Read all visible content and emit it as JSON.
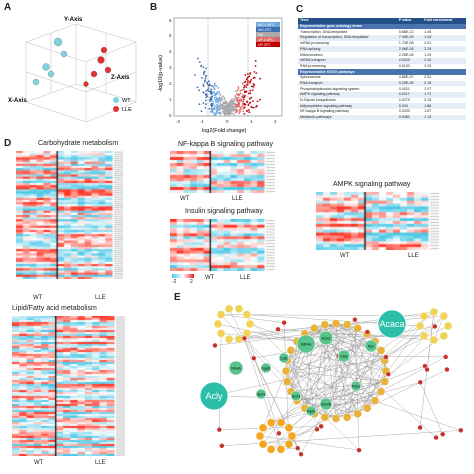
{
  "panels": {
    "a": "A",
    "b": "B",
    "c": "C",
    "d": "D",
    "e": "E"
  },
  "pca": {
    "x_axis": "X-Axis",
    "y_axis": "Y-Axis",
    "z_axis": "Z-Axis",
    "legend": [
      "WT",
      "LLE"
    ],
    "colors": {
      "WT": "#7ed3df",
      "LLE": "#e03030"
    }
  },
  "volcano": {
    "xlabel": "log2(Fold change)",
    "ylabel": "-log10(p-value)",
    "x_ticks": [
      "-2",
      "-1",
      "0",
      "1",
      "2"
    ],
    "y_ticks": [
      "0",
      "1",
      "2",
      "3",
      "4",
      "5",
      "6"
    ],
    "legend": [
      "MG-1.5FC",
      "MG-2FC",
      "NS",
      "UP-1.5FC",
      "UP-2FC"
    ],
    "legend_colors": [
      "#6fa8dc",
      "#3d6fb0",
      "#aaaaaa",
      "#e06666",
      "#c00000"
    ]
  },
  "table": {
    "headers": [
      "Term",
      "P value",
      "Fold enrichment"
    ],
    "go_section": "Representative gene ontology terms",
    "go_rows": [
      [
        "Transcription, DNA-templated",
        "5.68E-12",
        "1.45"
      ],
      [
        "Regulation of transcription, DNA-templated",
        "7.45E-09",
        "1.44"
      ],
      [
        "mRNA processing",
        "1.73E-08",
        "2.01"
      ],
      [
        "RNA splicing",
        "2.06E-08",
        "2.19"
      ],
      [
        "Mitochondrion",
        "2.25E-05",
        "1.29"
      ],
      [
        "mRNA transport",
        "0.0023",
        "2.10"
      ],
      [
        "RNA processing",
        "0.0103",
        "2.03"
      ]
    ],
    "kegg_section": "Representative KEGG pathways",
    "kegg_rows": [
      [
        "Spliceosome",
        "4.86E-07",
        "2.51"
      ],
      [
        "RNA transport",
        "5.29E-06",
        "2.18"
      ],
      [
        "Phosphatidylinositol signaling system",
        "0.0021",
        "2.07"
      ],
      [
        "AMPK signaling pathway",
        "0.0117",
        "1.72"
      ],
      [
        "N-Glycan biosynthesis",
        "0.0279",
        "2.15"
      ],
      [
        "Adipocytokine signaling pathway",
        "0.034",
        "1.86"
      ],
      [
        "NF-kappa B signaling pathway",
        "0.0430",
        "1.67"
      ],
      [
        "Metabolic pathways",
        "0.0461",
        "1.14"
      ]
    ]
  },
  "heatmaps": {
    "carb": "Carbohydrate metabolism",
    "lipid": "Lipid/Fatty acid metabolism",
    "nfkb": "NF-kappa B signaling pathway",
    "insulin": "Insulin signaling pathway",
    "ampk": "AMPK signaling pathway",
    "wt": "WT",
    "lle": "LLE",
    "scale_min": "-2",
    "scale_max": "2"
  },
  "network": {
    "hubs": [
      "Acly",
      "Acaca"
    ],
    "nodes": [
      "Sdh4a",
      "Acsl1",
      "Cidc",
      "Nme6",
      "Dgat1",
      "Cat1",
      "Elovl6",
      "Fasn",
      "Pck1",
      "Ppx",
      "Gpd1",
      "Scd1",
      "Cpt1",
      "Acc1",
      "Srebf1",
      "Lpin1",
      "Agpat",
      "Ehhadh",
      "Hmgcr",
      "Pltp"
    ]
  }
}
